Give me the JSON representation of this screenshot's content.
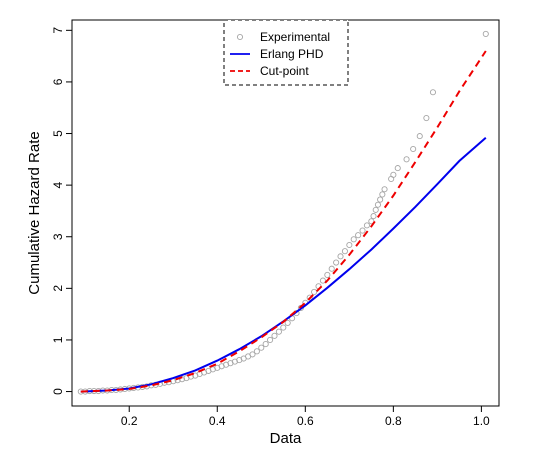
{
  "chart_data": {
    "type": "scatter",
    "xlabel": "Data",
    "ylabel": "Cumulative Hazard Rate",
    "xlim": [
      0.07,
      1.04
    ],
    "ylim": [
      -0.28,
      7.2
    ],
    "x_ticks": [
      0.2,
      0.4,
      0.6,
      0.8,
      1.0
    ],
    "x_tick_labels": [
      "0.2",
      "0.4",
      "0.6",
      "0.8",
      "1.0"
    ],
    "y_ticks": [
      0,
      1,
      2,
      3,
      4,
      5,
      6,
      7
    ],
    "y_tick_labels": [
      "0",
      "1",
      "2",
      "3",
      "4",
      "5",
      "6",
      "7"
    ],
    "legend_position": "top-center",
    "grid": false,
    "series": [
      {
        "name": "Experimental",
        "kind": "points",
        "color": "#a6a6a6",
        "points": [
          [
            0.09,
            0.0
          ],
          [
            0.1,
            0.0
          ],
          [
            0.11,
            0.01
          ],
          [
            0.12,
            0.01
          ],
          [
            0.13,
            0.01
          ],
          [
            0.14,
            0.02
          ],
          [
            0.15,
            0.02
          ],
          [
            0.16,
            0.03
          ],
          [
            0.17,
            0.03
          ],
          [
            0.18,
            0.04
          ],
          [
            0.19,
            0.05
          ],
          [
            0.2,
            0.06
          ],
          [
            0.21,
            0.07
          ],
          [
            0.22,
            0.08
          ],
          [
            0.23,
            0.09
          ],
          [
            0.24,
            0.1
          ],
          [
            0.25,
            0.12
          ],
          [
            0.26,
            0.13
          ],
          [
            0.27,
            0.15
          ],
          [
            0.28,
            0.17
          ],
          [
            0.29,
            0.18
          ],
          [
            0.3,
            0.2
          ],
          [
            0.31,
            0.22
          ],
          [
            0.32,
            0.24
          ],
          [
            0.33,
            0.26
          ],
          [
            0.34,
            0.29
          ],
          [
            0.35,
            0.31
          ],
          [
            0.36,
            0.34
          ],
          [
            0.37,
            0.37
          ],
          [
            0.38,
            0.4
          ],
          [
            0.39,
            0.43
          ],
          [
            0.4,
            0.46
          ],
          [
            0.41,
            0.49
          ],
          [
            0.42,
            0.52
          ],
          [
            0.43,
            0.55
          ],
          [
            0.44,
            0.58
          ],
          [
            0.45,
            0.61
          ],
          [
            0.46,
            0.64
          ],
          [
            0.47,
            0.68
          ],
          [
            0.48,
            0.72
          ],
          [
            0.49,
            0.78
          ],
          [
            0.5,
            0.85
          ],
          [
            0.51,
            0.92
          ],
          [
            0.52,
            1.0
          ],
          [
            0.53,
            1.08
          ],
          [
            0.54,
            1.16
          ],
          [
            0.55,
            1.24
          ],
          [
            0.56,
            1.33
          ],
          [
            0.57,
            1.42
          ],
          [
            0.58,
            1.52
          ],
          [
            0.59,
            1.62
          ],
          [
            0.6,
            1.72
          ],
          [
            0.61,
            1.82
          ],
          [
            0.62,
            1.93
          ],
          [
            0.63,
            2.04
          ],
          [
            0.64,
            2.15
          ],
          [
            0.65,
            2.26
          ],
          [
            0.66,
            2.38
          ],
          [
            0.67,
            2.5
          ],
          [
            0.68,
            2.62
          ],
          [
            0.69,
            2.72
          ],
          [
            0.7,
            2.84
          ],
          [
            0.71,
            2.95
          ],
          [
            0.72,
            3.03
          ],
          [
            0.73,
            3.12
          ],
          [
            0.74,
            3.22
          ],
          [
            0.75,
            3.3
          ],
          [
            0.755,
            3.4
          ],
          [
            0.76,
            3.52
          ],
          [
            0.765,
            3.62
          ],
          [
            0.77,
            3.72
          ],
          [
            0.775,
            3.82
          ],
          [
            0.78,
            3.92
          ],
          [
            0.795,
            4.12
          ],
          [
            0.8,
            4.2
          ],
          [
            0.81,
            4.33
          ],
          [
            0.83,
            4.5
          ],
          [
            0.845,
            4.7
          ],
          [
            0.86,
            4.95
          ],
          [
            0.875,
            5.3
          ],
          [
            0.89,
            5.8
          ],
          [
            1.01,
            6.93
          ]
        ]
      },
      {
        "name": "Erlang PHD",
        "kind": "line",
        "color": "#0000ee",
        "dash": "solid",
        "points": [
          [
            0.09,
            0.0
          ],
          [
            0.15,
            0.02
          ],
          [
            0.2,
            0.06
          ],
          [
            0.25,
            0.14
          ],
          [
            0.3,
            0.26
          ],
          [
            0.35,
            0.41
          ],
          [
            0.4,
            0.6
          ],
          [
            0.45,
            0.82
          ],
          [
            0.5,
            1.07
          ],
          [
            0.55,
            1.36
          ],
          [
            0.6,
            1.67
          ],
          [
            0.65,
            2.01
          ],
          [
            0.7,
            2.37
          ],
          [
            0.75,
            2.75
          ],
          [
            0.8,
            3.16
          ],
          [
            0.85,
            3.58
          ],
          [
            0.9,
            4.02
          ],
          [
            0.95,
            4.47
          ],
          [
            1.01,
            4.92
          ]
        ]
      },
      {
        "name": "Cut-point",
        "kind": "line",
        "color": "#ee0000",
        "dash": "dashed",
        "points": [
          [
            0.09,
            0.0
          ],
          [
            0.15,
            0.02
          ],
          [
            0.2,
            0.05
          ],
          [
            0.25,
            0.12
          ],
          [
            0.3,
            0.22
          ],
          [
            0.35,
            0.36
          ],
          [
            0.4,
            0.54
          ],
          [
            0.45,
            0.78
          ],
          [
            0.5,
            1.05
          ],
          [
            0.55,
            1.35
          ],
          [
            0.6,
            1.72
          ],
          [
            0.65,
            2.15
          ],
          [
            0.7,
            2.65
          ],
          [
            0.75,
            3.2
          ],
          [
            0.8,
            3.8
          ],
          [
            0.85,
            4.45
          ],
          [
            0.9,
            5.12
          ],
          [
            0.95,
            5.82
          ],
          [
            1.01,
            6.6
          ]
        ]
      }
    ]
  }
}
